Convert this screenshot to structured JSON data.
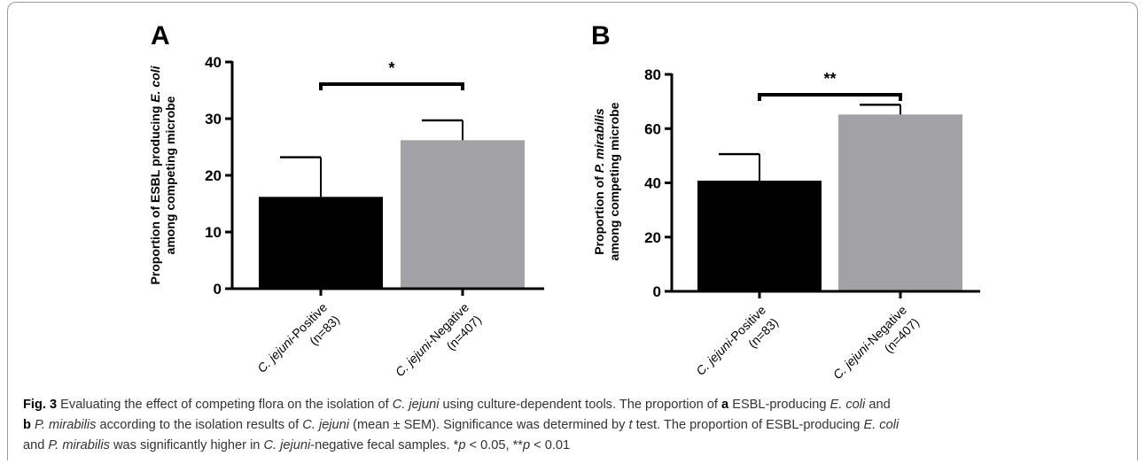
{
  "chart_data": [
    {
      "type": "bar",
      "panel_label": "A",
      "categories": [
        "C. jejuni-Positive (n=83)",
        "C. jejuni-Negative (n=407)"
      ],
      "category_lines": [
        {
          "species": "C. jejuni",
          "suffix": "-Positive",
          "n": "(n=83)"
        },
        {
          "species": "C. jejuni",
          "suffix": "-Negative",
          "n": "(n=407)"
        }
      ],
      "values": [
        16.2,
        26.2
      ],
      "errors": [
        7.0,
        3.5
      ],
      "bar_colors": [
        "#000000",
        "#a2a1a6"
      ],
      "ylabel_line1": [
        "Proportion of ESBL producing ",
        "E. coli"
      ],
      "ylabel_line2": "among competing microbe",
      "ylim": [
        0,
        40
      ],
      "yticks": [
        0,
        10,
        20,
        30,
        40
      ],
      "significance": "*"
    },
    {
      "type": "bar",
      "panel_label": "B",
      "categories": [
        "C. jejuni-Positive (n=83)",
        "C. jejuni-Negative (n=407)"
      ],
      "category_lines": [
        {
          "species": "C. jejuni",
          "suffix": "-Positive",
          "n": "(n=83)"
        },
        {
          "species": "C. jejuni",
          "suffix": "-Negative",
          "n": "(n=407)"
        }
      ],
      "values": [
        40.8,
        65.2
      ],
      "errors": [
        9.8,
        3.6
      ],
      "bar_colors": [
        "#000000",
        "#a2a1a6"
      ],
      "ylabel_line1": [
        "Proportion of ",
        "P. mirabilis"
      ],
      "ylabel_line2": "among competing microbe",
      "ylim": [
        0,
        80
      ],
      "yticks": [
        0,
        20,
        40,
        60,
        80
      ],
      "significance": "**"
    }
  ],
  "caption": {
    "fig_label": "Fig. 3",
    "text_1": " Evaluating the effect of competing flora on the isolation of ",
    "cj_1": "C. jejuni",
    "text_2": " using culture-dependent tools. The proportion of ",
    "a_label": "a",
    "text_3": " ESBL-producing ",
    "ecoli_1": "E. coli",
    "text_4": " and ",
    "b_label": "b",
    "text_5": " ",
    "pm_1": "P. mirabilis",
    "text_6": " according to the isolation results of ",
    "cj_2": "C. jejuni",
    "text_7": " (mean ± SEM). Significance was determined by ",
    "t_word": "t",
    "text_8": " test. The proportion of ESBL-producing ",
    "ecoli_2": "E. coli",
    "text_9": " and ",
    "pm_2": "P. mirabilis",
    "text_10": " was significantly higher in ",
    "cj_3": "C. jejuni",
    "text_11": "-negative fecal samples. *",
    "p_1": "p",
    "text_12": " < 0.05, **",
    "p_2": "p",
    "text_13": " < 0.01"
  }
}
